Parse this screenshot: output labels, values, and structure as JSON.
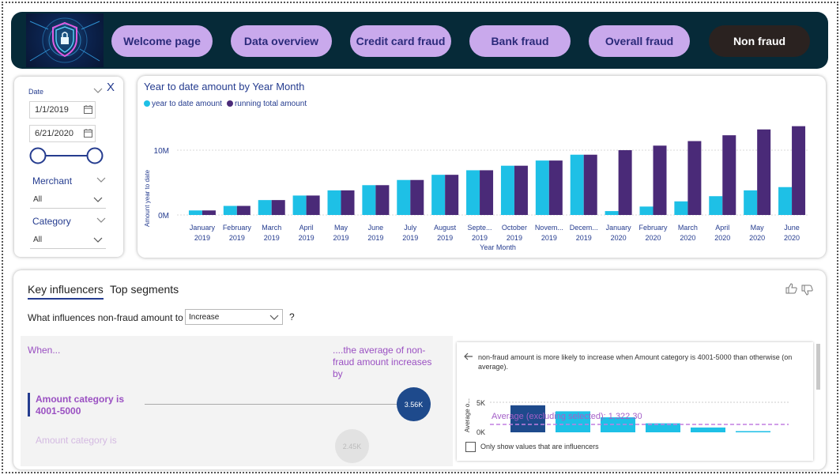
{
  "nav": {
    "buttons": [
      "Welcome page",
      "Data overview",
      "Credit card fraud",
      "Bank fraud",
      "Overall fraud",
      "Non fraud"
    ]
  },
  "filters": {
    "date_label": "Date",
    "clear_label": "X",
    "start_date": "1/1/2019",
    "end_date": "6/21/2020",
    "merchant_label": "Merchant",
    "merchant_value": "All",
    "category_label": "Category",
    "category_value": "All"
  },
  "chart": {
    "title": "Year to date amount by Year Month",
    "legend": [
      "year to date amount",
      "running total amount"
    ],
    "ylabel": "Amount year to date",
    "xlabel": "Year Month",
    "yticks": [
      "10M",
      "0M"
    ]
  },
  "chart_data": {
    "type": "bar",
    "title": "Year to date amount by Year Month",
    "xlabel": "Year Month",
    "ylabel": "Amount year to date",
    "ylim": [
      0,
      14
    ],
    "grid": true,
    "legend_position": "top-left",
    "categories": [
      [
        "January",
        "2019"
      ],
      [
        "February",
        "2019"
      ],
      [
        "March",
        "2019"
      ],
      [
        "April",
        "2019"
      ],
      [
        "May",
        "2019"
      ],
      [
        "June",
        "2019"
      ],
      [
        "July",
        "2019"
      ],
      [
        "August",
        "2019"
      ],
      [
        "Septe...",
        "2019"
      ],
      [
        "October",
        "2019"
      ],
      [
        "Novem...",
        "2019"
      ],
      [
        "Decem...",
        "2019"
      ],
      [
        "January",
        "2020"
      ],
      [
        "February",
        "2020"
      ],
      [
        "March",
        "2020"
      ],
      [
        "April",
        "2020"
      ],
      [
        "May",
        "2020"
      ],
      [
        "June",
        "2020"
      ]
    ],
    "series": [
      {
        "name": "year to date amount",
        "color": "#1ec0e6",
        "values": [
          0.7,
          1.4,
          2.3,
          3.0,
          3.8,
          4.6,
          5.4,
          6.2,
          6.9,
          7.6,
          8.4,
          9.3,
          0.6,
          1.3,
          2.1,
          2.9,
          3.8,
          4.3
        ]
      },
      {
        "name": "running total amount",
        "color": "#4a2a78",
        "values": [
          0.7,
          1.4,
          2.3,
          3.0,
          3.8,
          4.6,
          5.4,
          6.2,
          6.9,
          7.6,
          8.4,
          9.3,
          10.0,
          10.7,
          11.4,
          12.3,
          13.2,
          13.7
        ]
      }
    ]
  },
  "influencers": {
    "tabs": [
      "Key influencers",
      "Top segments"
    ],
    "question": "What influences non-fraud amount to",
    "selection": "Increase",
    "help": "?",
    "when_label": "When...",
    "avg_label": "....the average of non-fraud amount increases by",
    "item1_label": "Amount category is 4001-5000",
    "item1_value": "3.56K",
    "item2_label": "Amount category is",
    "item2_value": "2.45K",
    "detail_text": "non-fraud amount is more likely to increase when Amount category is 4001-5000 than otherwise (on average).",
    "detail_ylabel": "Average o...",
    "detail_yticks": [
      "5K",
      "0K"
    ],
    "average_note": "Average (excluding selected): 1,322.30",
    "checkbox_label": "Only show values that are influencers"
  },
  "detail_chart_data": {
    "type": "bar",
    "values": [
      4.5,
      3.5,
      2.5,
      1.5,
      0.8,
      0.2
    ],
    "average": 1.3223,
    "ylim": [
      0,
      6
    ]
  }
}
